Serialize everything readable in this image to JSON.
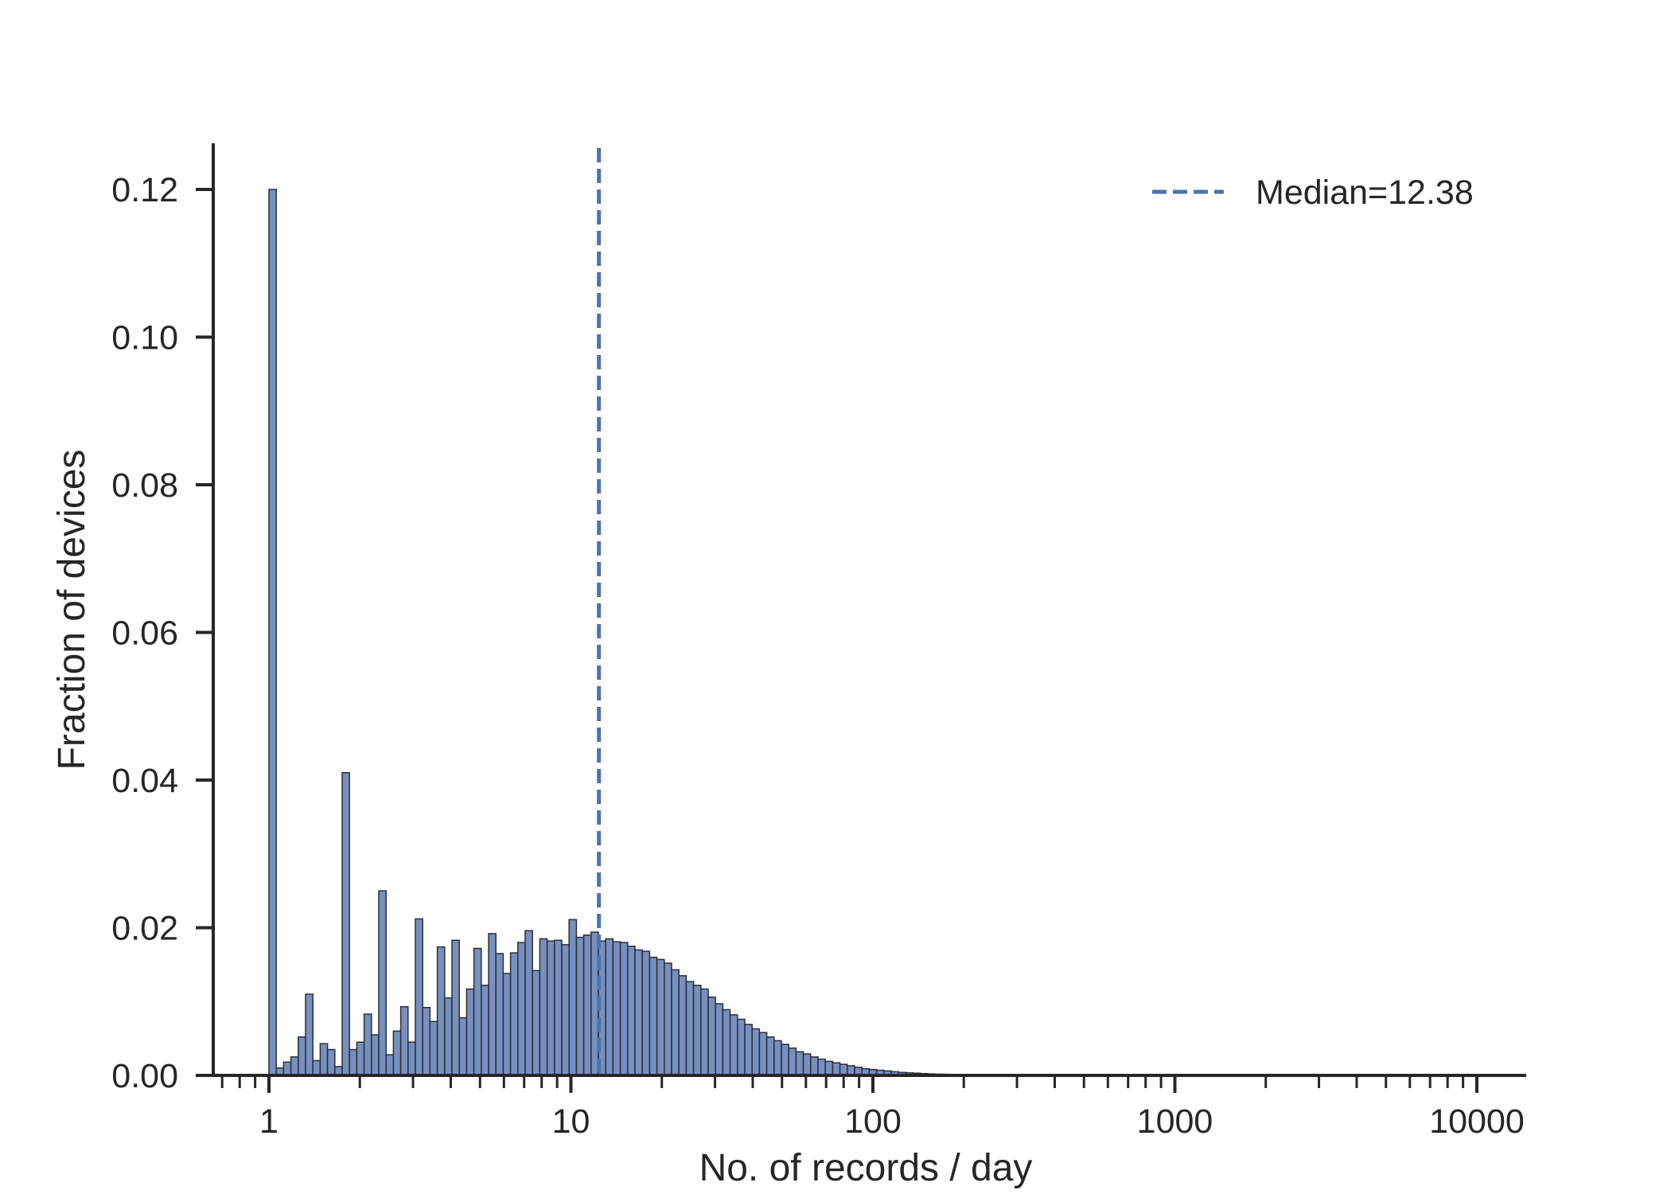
{
  "chart_data": {
    "type": "bar",
    "xlabel": "No. of records / day",
    "ylabel": "Fraction of devices",
    "x_scale": "log",
    "xlim": [
      0.62,
      13500
    ],
    "ylim": [
      0,
      0.126
    ],
    "x_ticks": [
      {
        "value": 1,
        "label": "1"
      },
      {
        "value": 10,
        "label": "10"
      },
      {
        "value": 100,
        "label": "100"
      },
      {
        "value": 1000,
        "label": "1000"
      },
      {
        "value": 10000,
        "label": "10000"
      }
    ],
    "y_ticks": [
      {
        "value": 0.0,
        "label": "0.00"
      },
      {
        "value": 0.02,
        "label": "0.02"
      },
      {
        "value": 0.04,
        "label": "0.04"
      },
      {
        "value": 0.06,
        "label": "0.06"
      },
      {
        "value": 0.08,
        "label": "0.08"
      },
      {
        "value": 0.1,
        "label": "0.10"
      },
      {
        "value": 0.12,
        "label": "0.12"
      }
    ],
    "bins": {
      "start": 1,
      "end": 10000,
      "count": 165,
      "values": [
        0.12,
        0.001,
        0.0018,
        0.0025,
        0.0052,
        0.011,
        0.002,
        0.0043,
        0.0035,
        0.0012,
        0.041,
        0.0035,
        0.0045,
        0.0083,
        0.0055,
        0.025,
        0.0028,
        0.006,
        0.0093,
        0.0045,
        0.0212,
        0.0092,
        0.0073,
        0.0174,
        0.0105,
        0.0183,
        0.0078,
        0.0117,
        0.0172,
        0.0122,
        0.0192,
        0.0165,
        0.0138,
        0.0166,
        0.018,
        0.0196,
        0.0142,
        0.0185,
        0.0182,
        0.0183,
        0.0177,
        0.0211,
        0.0187,
        0.019,
        0.0194,
        0.0182,
        0.0185,
        0.0181,
        0.018,
        0.0175,
        0.017,
        0.0168,
        0.016,
        0.0157,
        0.0152,
        0.0143,
        0.0135,
        0.0127,
        0.0122,
        0.0117,
        0.0106,
        0.0097,
        0.0089,
        0.0082,
        0.0076,
        0.0069,
        0.0063,
        0.0058,
        0.0052,
        0.0047,
        0.0042,
        0.0037,
        0.0032,
        0.0029,
        0.0025,
        0.0022,
        0.0019,
        0.0017,
        0.0015,
        0.0013,
        0.0011,
        0.0009,
        0.0008,
        0.0007,
        0.0006,
        0.0005,
        0.0004,
        0.00035,
        0.0003,
        0.00025,
        0.0002,
        0.00017,
        0.00015,
        0.00012,
        0.0001,
        8e-05,
        7e-05,
        6e-05,
        5e-05,
        4e-05,
        3e-05,
        3e-05,
        2e-05,
        2e-05,
        2e-05,
        1e-05,
        1e-05,
        1e-05,
        1e-05,
        1e-05,
        0,
        0,
        0,
        0,
        0,
        0,
        0,
        0,
        0,
        0,
        0,
        0,
        0,
        0,
        0,
        0,
        0,
        0,
        0,
        0,
        0,
        0,
        0,
        0,
        0,
        0,
        0,
        0,
        0,
        0,
        0,
        0,
        0,
        0,
        0,
        0,
        0,
        0,
        0,
        0,
        0,
        0,
        0,
        0,
        0,
        0,
        0,
        0,
        0,
        0,
        0,
        0,
        0,
        0,
        0
      ]
    },
    "reference_line": {
      "x": 12.38,
      "style": "dashed",
      "legend_label": "Median=12.38"
    },
    "legend_position": "top-right",
    "grid": false,
    "colors": {
      "bar_fill": "#7690c1",
      "bar_edge": "#2e2e2e",
      "median_line": "#4c72b0",
      "axis": "#262626"
    }
  }
}
